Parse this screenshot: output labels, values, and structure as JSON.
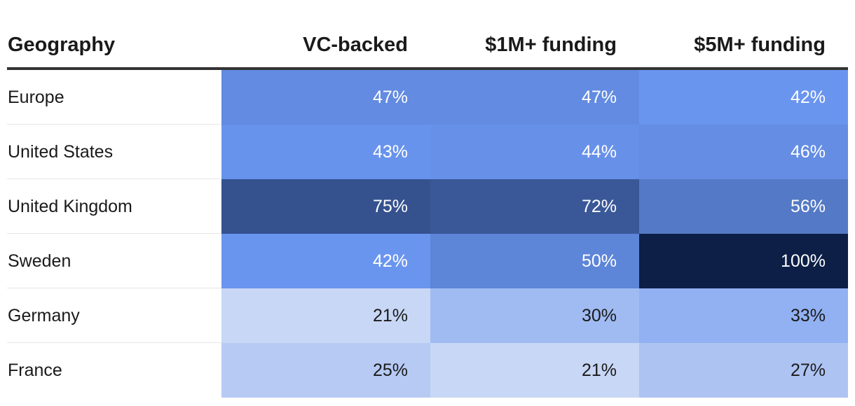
{
  "chart_data": {
    "type": "heatmap",
    "columns": [
      "Geography",
      "VC-backed",
      "$1M+ funding",
      "$5M+ funding"
    ],
    "rows": [
      {
        "label": "Europe",
        "values": [
          "47%",
          "47%",
          "42%"
        ]
      },
      {
        "label": "United States",
        "values": [
          "43%",
          "44%",
          "46%"
        ]
      },
      {
        "label": "United Kingdom",
        "values": [
          "75%",
          "72%",
          "56%"
        ]
      },
      {
        "label": "Sweden",
        "values": [
          "42%",
          "50%",
          "100%"
        ]
      },
      {
        "label": "Germany",
        "values": [
          "21%",
          "30%",
          "33%"
        ]
      },
      {
        "label": "France",
        "values": [
          "25%",
          "21%",
          "27%"
        ]
      }
    ],
    "color_scale": {
      "low": "#c8d7f5",
      "mid": "#6a95ef",
      "high": "#0d1f47",
      "text_dark": "#1a1a1a",
      "text_light": "#ffffff"
    }
  }
}
